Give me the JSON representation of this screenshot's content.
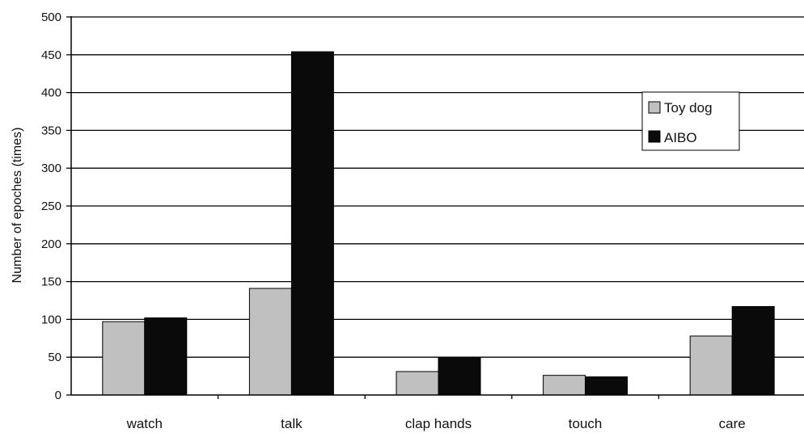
{
  "chart_data": {
    "type": "bar",
    "categories": [
      "watch",
      "talk",
      "clap hands",
      "touch",
      "care"
    ],
    "series": [
      {
        "name": "Toy dog",
        "values": [
          97,
          141,
          31,
          26,
          78
        ],
        "color": "#c0c0c0"
      },
      {
        "name": "AIBO",
        "values": [
          102,
          454,
          50,
          24,
          117
        ],
        "color": "#0a0a0a"
      }
    ],
    "ylabel": "Number of epoches (times)",
    "xlabel": "",
    "ylim": [
      0,
      500
    ],
    "yticks": [
      "0",
      "50",
      "100",
      "150",
      "200",
      "250",
      "300",
      "350",
      "400",
      "450",
      "500"
    ],
    "grid": true,
    "legend": "top-right"
  }
}
